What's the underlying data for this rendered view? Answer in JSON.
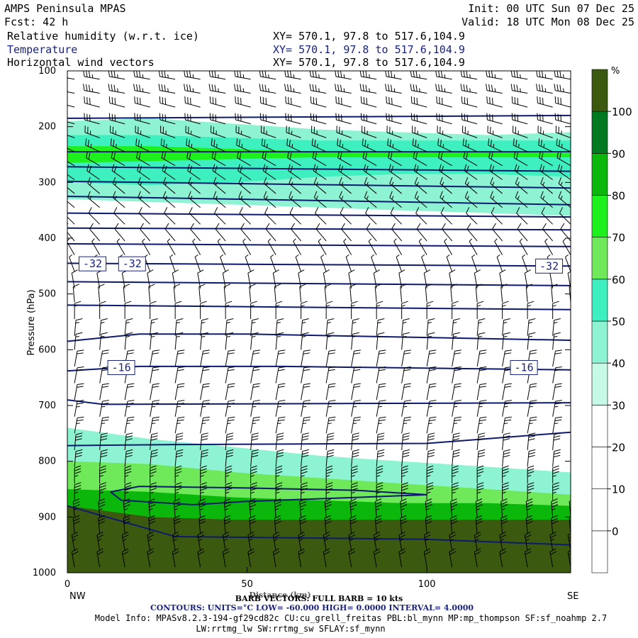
{
  "header": {
    "model": "AMPS Peninsula MPAS",
    "init": "Init: 00 UTC Sun 07 Dec 25",
    "fcst": "Fcst:  42 h",
    "valid": "Valid: 18 UTC Mon 08 Dec 25",
    "fields": [
      {
        "label": "Relative humidity (w.r.t. ice)",
        "xy": "XY= 570.1, 97.8 to 517.6,104.9"
      },
      {
        "label": "Temperature",
        "xy": "XY= 570.1, 97.8 to 517.6,104.9"
      },
      {
        "label": "Horizontal wind vectors",
        "xy": "XY= 570.1, 97.8 to 517.6,104.9"
      }
    ]
  },
  "footer": {
    "barb": "BARB VECTORS: FULL BARB = 10 kts",
    "xlabel": "Distance (km)",
    "contours": "CONTOURS:  UNITS=°C  LOW= -60.000      HIGH=  0.0000      INTERVAL=    4.0000",
    "model_info": "Model Info: MPASv8.2.3-194-gf29cd82c CU:cu_grell_freitas PBL:bl_mynn MP:mp_thompson SF:sf_noahmp 2.7",
    "model_info2": "LW:rrtmg_lw SW:rrtmg_sw SFLAY:sf_mynn",
    "left_end": "NW",
    "right_end": "SE"
  },
  "colors": {
    "contour": "#0d1a6e",
    "temperature_label": "#1a237e",
    "barb": "#000000"
  },
  "chart_data": {
    "type": "heatmap",
    "ylabel": "Pressure (hPa)",
    "xlabel": "Distance (km)",
    "xlim": [
      0,
      140
    ],
    "ylim": [
      1000,
      100
    ],
    "xticks": [
      0,
      50,
      100
    ],
    "yticks": [
      100,
      200,
      300,
      400,
      500,
      600,
      700,
      800,
      900,
      1000
    ],
    "colorbar": {
      "unit": "%",
      "ticks": [
        0,
        10,
        20,
        30,
        40,
        50,
        60,
        70,
        80,
        90,
        100
      ],
      "bins": [
        {
          "from": -10,
          "to": 0,
          "color": "#ffffff"
        },
        {
          "from": 0,
          "to": 10,
          "color": "#ffffff"
        },
        {
          "from": 10,
          "to": 20,
          "color": "#ffffff"
        },
        {
          "from": 20,
          "to": 30,
          "color": "#ffffff"
        },
        {
          "from": 30,
          "to": 40,
          "color": "#c6fae6"
        },
        {
          "from": 40,
          "to": 50,
          "color": "#8ef3d2"
        },
        {
          "from": 50,
          "to": 60,
          "color": "#3ef0c0"
        },
        {
          "from": 60,
          "to": 70,
          "color": "#6fe85a"
        },
        {
          "from": 70,
          "to": 80,
          "color": "#1ef01e"
        },
        {
          "from": 80,
          "to": 90,
          "color": "#0ab70a"
        },
        {
          "from": 90,
          "to": 100,
          "color": "#007a20"
        },
        {
          "from": 100,
          "to": 110,
          "color": "#3b5a0f"
        }
      ]
    },
    "rh_layers": [
      {
        "name": "upper-moist",
        "p_top": [
          190,
          185,
          195,
          205,
          210,
          215,
          210
        ],
        "p_bot": [
          330,
          335,
          340,
          345,
          350,
          355,
          360
        ],
        "rh": 40
      },
      {
        "name": "upper-core",
        "p_top": [
          215,
          215,
          220,
          225,
          225,
          225,
          225
        ],
        "p_bot": [
          300,
          305,
          300,
          290,
          285,
          285,
          290
        ],
        "rh": 55
      },
      {
        "name": "upper-peak",
        "p_top": [
          235,
          235,
          240,
          245,
          245,
          245,
          248
        ],
        "p_bot": [
          265,
          262,
          258,
          255,
          255,
          255,
          255
        ],
        "rh": 75
      },
      {
        "name": "lower-moist",
        "p_top": [
          740,
          760,
          775,
          790,
          800,
          810,
          820
        ],
        "p_bot": [
          1000,
          1000,
          1000,
          1000,
          1000,
          1000,
          1000
        ],
        "rh": 40
      },
      {
        "name": "lower-mid",
        "p_top": [
          800,
          805,
          820,
          830,
          840,
          850,
          860
        ],
        "p_bot": [
          1000,
          1000,
          1000,
          1000,
          1000,
          1000,
          1000
        ],
        "rh": 60
      },
      {
        "name": "lower-wet",
        "p_top": [
          850,
          855,
          865,
          870,
          875,
          875,
          880
        ],
        "p_bot": [
          1000,
          1000,
          1000,
          1000,
          1000,
          1000,
          1000
        ],
        "rh": 85
      },
      {
        "name": "lower-saturated",
        "p_top": [
          880,
          900,
          905,
          905,
          905,
          905,
          905
        ],
        "p_bot": [
          1000,
          1000,
          1000,
          1000,
          1000,
          1000,
          1000
        ],
        "rh": 105
      }
    ],
    "layer_x": [
      0,
      23,
      47,
      70,
      93,
      117,
      140
    ],
    "temperature_contours": [
      {
        "x": [
          0,
          140
        ],
        "p": [
          185,
          180
        ]
      },
      {
        "x": [
          0,
          140
        ],
        "p": [
          245,
          245
        ]
      },
      {
        "x": [
          0,
          140
        ],
        "p": [
          272,
          280
        ]
      },
      {
        "x": [
          0,
          140
        ],
        "p": [
          298,
          310
        ]
      },
      {
        "x": [
          0,
          140
        ],
        "p": [
          325,
          340
        ]
      },
      {
        "x": [
          0,
          140
        ],
        "p": [
          355,
          362
        ]
      },
      {
        "x": [
          0,
          140
        ],
        "p": [
          382,
          385
        ]
      },
      {
        "x": [
          0,
          140
        ],
        "p": [
          410,
          415
        ]
      },
      {
        "x": [
          0,
          140
        ],
        "p": [
          445,
          450
        ]
      },
      {
        "x": [
          0,
          140
        ],
        "p": [
          478,
          485
        ]
      },
      {
        "x": [
          0,
          140
        ],
        "p": [
          520,
          528
        ]
      },
      {
        "x": [
          0,
          20,
          50,
          140
        ],
        "p": [
          585,
          572,
          572,
          583
        ]
      },
      {
        "x": [
          0,
          20,
          60,
          140
        ],
        "p": [
          638,
          630,
          630,
          636
        ]
      },
      {
        "x": [
          0,
          10,
          140
        ],
        "p": [
          690,
          698,
          695
        ]
      },
      {
        "x": [
          0,
          30,
          100,
          140
        ],
        "p": [
          772,
          770,
          768,
          748
        ]
      },
      {
        "x": [
          12,
          20,
          50,
          80,
          100,
          80,
          50,
          35,
          15,
          12
        ],
        "p": [
          855,
          845,
          848,
          852,
          860,
          865,
          872,
          878,
          870,
          855
        ]
      },
      {
        "x": [
          0,
          30,
          100,
          140
        ],
        "p": [
          880,
          935,
          940,
          950
        ]
      }
    ],
    "contour_labels": [
      {
        "text": "-32",
        "x": 7,
        "p": 446
      },
      {
        "text": "-32",
        "x": 18,
        "p": 446
      },
      {
        "text": "-32",
        "x": 134,
        "p": 450
      },
      {
        "text": "-16",
        "x": 15,
        "p": 632
      },
      {
        "text": "-16",
        "x": 127,
        "p": 632
      }
    ],
    "wind_barbs": {
      "units": "kts",
      "full_barb": 10,
      "x": [
        2,
        9,
        16,
        23,
        30,
        37,
        44,
        51,
        58,
        65,
        72,
        79,
        86,
        93,
        100,
        107,
        114,
        121,
        128,
        135,
        140
      ],
      "levels": [
        {
          "p": 115,
          "dir": 280,
          "spd": 35
        },
        {
          "p": 140,
          "dir": 280,
          "spd": 35
        },
        {
          "p": 165,
          "dir": 285,
          "spd": 30
        },
        {
          "p": 195,
          "dir": 285,
          "spd": 30
        },
        {
          "p": 220,
          "dir": 290,
          "spd": 25
        },
        {
          "p": 245,
          "dir": 295,
          "spd": 25
        },
        {
          "p": 270,
          "dir": 300,
          "spd": 20
        },
        {
          "p": 295,
          "dir": 305,
          "spd": 20
        },
        {
          "p": 320,
          "dir": 310,
          "spd": 15
        },
        {
          "p": 345,
          "dir": 310,
          "spd": 15
        },
        {
          "p": 375,
          "dir": 315,
          "spd": 10
        },
        {
          "p": 405,
          "dir": 320,
          "spd": 10
        },
        {
          "p": 430,
          "dir": 330,
          "spd": 5
        },
        {
          "p": 460,
          "dir": 340,
          "spd": 5
        },
        {
          "p": 490,
          "dir": 350,
          "spd": 10
        },
        {
          "p": 515,
          "dir": 355,
          "spd": 10
        },
        {
          "p": 545,
          "dir": 0,
          "spd": 15
        },
        {
          "p": 575,
          "dir": 5,
          "spd": 15
        },
        {
          "p": 600,
          "dir": 5,
          "spd": 15
        },
        {
          "p": 630,
          "dir": 10,
          "spd": 20
        },
        {
          "p": 660,
          "dir": 10,
          "spd": 20
        },
        {
          "p": 690,
          "dir": 10,
          "spd": 20
        },
        {
          "p": 720,
          "dir": 10,
          "spd": 25
        },
        {
          "p": 750,
          "dir": 10,
          "spd": 25
        },
        {
          "p": 780,
          "dir": 5,
          "spd": 30
        },
        {
          "p": 810,
          "dir": 5,
          "spd": 30
        },
        {
          "p": 840,
          "dir": 0,
          "spd": 35
        },
        {
          "p": 870,
          "dir": 0,
          "spd": 35
        },
        {
          "p": 900,
          "dir": 355,
          "spd": 35
        },
        {
          "p": 930,
          "dir": 355,
          "spd": 30
        },
        {
          "p": 960,
          "dir": 350,
          "spd": 25
        },
        {
          "p": 990,
          "dir": 350,
          "spd": 20
        }
      ]
    }
  }
}
